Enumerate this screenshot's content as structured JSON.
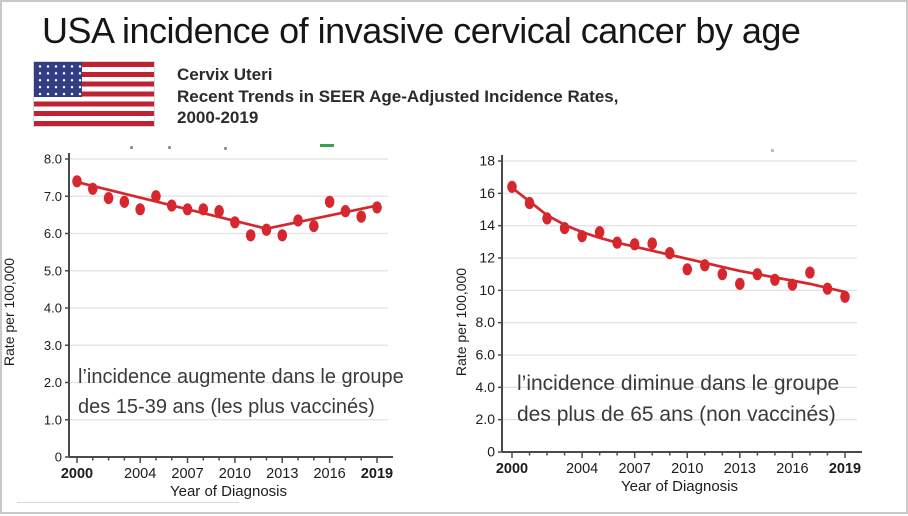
{
  "title": "USA incidence of invasive cervical cancer by age",
  "header": {
    "line1": "Cervix Uteri",
    "line2": "Recent Trends in SEER Age-Adjusted Incidence Rates,",
    "line3": "2000-2019"
  },
  "colors": {
    "dot_red": "#d6272e",
    "trend_red": "#d6272e",
    "grid": "#e2e2e2",
    "axis": "#4a4a4a",
    "tick_text": "#1c1c1c",
    "annotation_text": "#3a3a3a",
    "flag_red": "#bf2333",
    "flag_blue": "#323e84",
    "artifact_green": "#3aa04e"
  },
  "chart_data": [
    {
      "type": "scatter",
      "title": "",
      "xlabel": "Year of Diagnosis",
      "ylabel": "Rate per 100,000",
      "x": [
        2000,
        2001,
        2002,
        2003,
        2004,
        2005,
        2006,
        2007,
        2008,
        2009,
        2010,
        2011,
        2012,
        2013,
        2014,
        2015,
        2016,
        2017,
        2018,
        2019
      ],
      "values": [
        7.4,
        7.2,
        6.95,
        6.85,
        6.65,
        7.0,
        6.75,
        6.65,
        6.65,
        6.6,
        6.3,
        5.95,
        6.1,
        5.95,
        6.35,
        6.2,
        6.85,
        6.6,
        6.45,
        6.7
      ],
      "trend": {
        "x": [
          2000,
          2012,
          2019
        ],
        "y": [
          7.38,
          6.13,
          6.75
        ]
      },
      "ylim": [
        0,
        8
      ],
      "xlim": [
        2000,
        2019
      ],
      "yticks": [
        {
          "v": 0,
          "label": "0"
        },
        {
          "v": 1,
          "label": "1.0"
        },
        {
          "v": 2,
          "label": "2.0"
        },
        {
          "v": 3,
          "label": "3.0"
        },
        {
          "v": 4,
          "label": "4.0"
        },
        {
          "v": 5,
          "label": "5.0"
        },
        {
          "v": 6,
          "label": "6.0"
        },
        {
          "v": 7,
          "label": "7.0"
        },
        {
          "v": 8,
          "label": "8.0"
        }
      ],
      "xticks": [
        2000,
        2004,
        2007,
        2010,
        2013,
        2016,
        2019
      ],
      "annotation": [
        "l’incidence augmente dans le groupe",
        "des 15-39 ans (les plus vaccinés)"
      ],
      "legend_position": "none",
      "grid": true
    },
    {
      "type": "scatter",
      "title": "",
      "xlabel": "Year of Diagnosis",
      "ylabel": "Rate per 100,000",
      "x": [
        2000,
        2001,
        2002,
        2003,
        2004,
        2005,
        2006,
        2007,
        2008,
        2009,
        2010,
        2011,
        2012,
        2013,
        2014,
        2015,
        2016,
        2017,
        2018,
        2019
      ],
      "values": [
        16.4,
        15.4,
        14.45,
        13.85,
        13.35,
        13.6,
        12.95,
        12.85,
        12.9,
        12.3,
        11.3,
        11.55,
        11.0,
        10.4,
        11.0,
        10.65,
        10.35,
        11.1,
        10.1,
        9.6
      ],
      "trend": {
        "x": [
          2000,
          2001,
          2002,
          2003,
          2004,
          2005,
          2006,
          2007,
          2008,
          2009,
          2010,
          2011,
          2012,
          2013,
          2014,
          2015,
          2016,
          2017,
          2018,
          2019
        ],
        "y": [
          16.35,
          15.5,
          14.65,
          14.05,
          13.6,
          13.25,
          12.95,
          12.7,
          12.45,
          12.2,
          11.95,
          11.7,
          11.45,
          11.2,
          11.0,
          10.8,
          10.6,
          10.4,
          10.15,
          9.9
        ]
      },
      "ylim": [
        0,
        18
      ],
      "xlim": [
        2000,
        2019
      ],
      "yticks": [
        {
          "v": 0,
          "label": "0"
        },
        {
          "v": 2,
          "label": "2.0"
        },
        {
          "v": 4,
          "label": "4.0"
        },
        {
          "v": 6,
          "label": "6.0"
        },
        {
          "v": 8,
          "label": "8.0"
        },
        {
          "v": 10,
          "label": "10"
        },
        {
          "v": 12,
          "label": "12"
        },
        {
          "v": 14,
          "label": "14"
        },
        {
          "v": 16,
          "label": "16"
        },
        {
          "v": 18,
          "label": "18"
        }
      ],
      "xticks": [
        2000,
        2004,
        2007,
        2010,
        2013,
        2016,
        2019
      ],
      "annotation": [
        "l’incidence diminue dans le groupe",
        "des plus de 65 ans (non vaccinés)"
      ],
      "legend_position": "none",
      "grid": true
    }
  ]
}
